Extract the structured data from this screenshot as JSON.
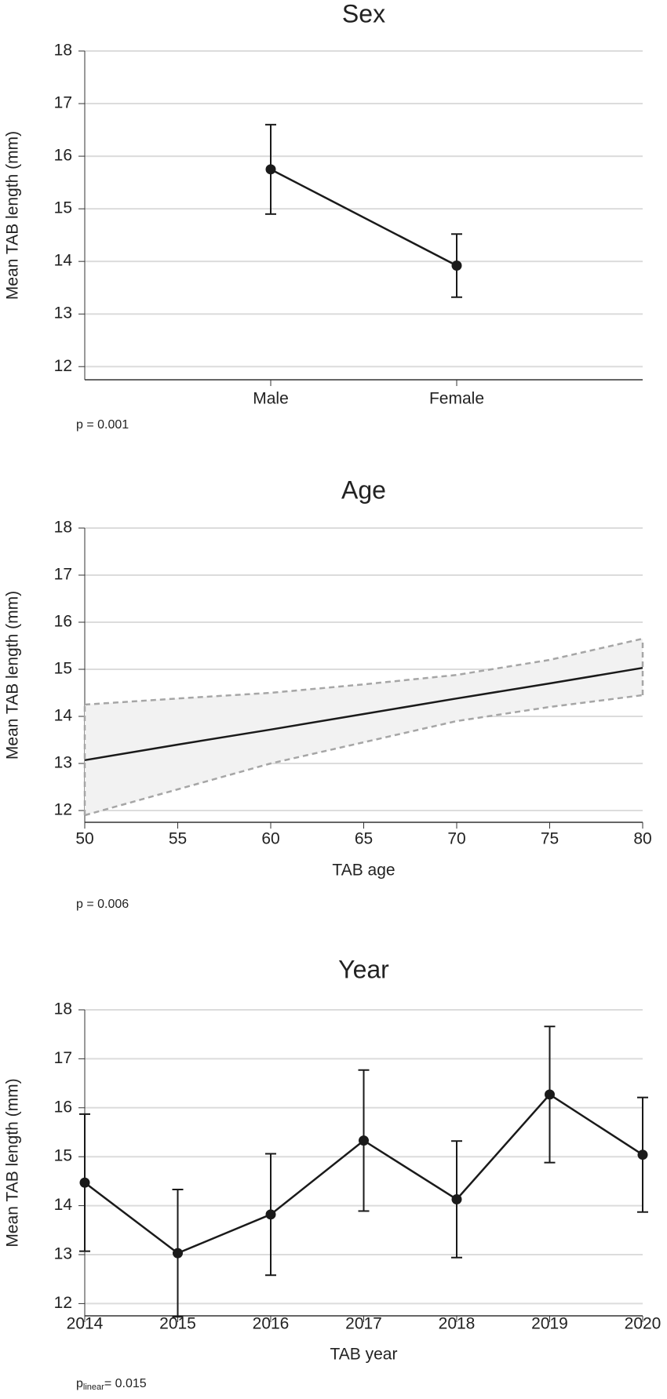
{
  "chart_data": [
    {
      "type": "line",
      "title": "Sex",
      "y_label": "Mean TAB length (mm)",
      "categories": [
        "Male",
        "Female"
      ],
      "values": [
        15.75,
        13.92
      ],
      "error": [
        0.85,
        0.6
      ],
      "ylim": [
        11.75,
        18
      ],
      "yticks": [
        12,
        13,
        14,
        15,
        16,
        17,
        18
      ],
      "grid": true,
      "color": "#1a1a1a",
      "note": "p = 0.001"
    },
    {
      "type": "line",
      "title": "Age",
      "y_label": "Mean TAB length (mm)",
      "x_label": "TAB age",
      "x": [
        50,
        55,
        60,
        65,
        70,
        75,
        80
      ],
      "values": [
        13.07,
        13.4,
        13.72,
        14.05,
        14.38,
        14.7,
        15.03
      ],
      "lower": [
        11.9,
        12.45,
        13.0,
        13.45,
        13.9,
        14.2,
        14.45
      ],
      "upper": [
        14.25,
        14.38,
        14.5,
        14.68,
        14.88,
        15.2,
        15.65
      ],
      "xlim": [
        50,
        80
      ],
      "xticks": [
        50,
        55,
        60,
        65,
        70,
        75,
        80
      ],
      "ylim": [
        11.75,
        18
      ],
      "yticks": [
        12,
        13,
        14,
        15,
        16,
        17,
        18
      ],
      "grid": true,
      "color": "#1a1a1a",
      "band_color": "#f2f2f2",
      "band_line_color": "#a6a6a6",
      "note": "p = 0.006"
    },
    {
      "type": "line",
      "title": "Year",
      "y_label": "Mean TAB length (mm)",
      "x_label": "TAB year",
      "x": [
        2014,
        2015,
        2016,
        2017,
        2018,
        2019,
        2020
      ],
      "values": [
        14.47,
        13.03,
        13.82,
        15.33,
        14.13,
        16.27,
        15.04
      ],
      "error": [
        1.4,
        1.3,
        1.24,
        1.44,
        1.19,
        1.39,
        1.17
      ],
      "xlim": [
        2014,
        2020
      ],
      "xticks": [
        2014,
        2015,
        2016,
        2017,
        2018,
        2019,
        2020
      ],
      "ylim": [
        11.75,
        18
      ],
      "yticks": [
        12,
        13,
        14,
        15,
        16,
        17,
        18
      ],
      "grid": true,
      "color": "#1a1a1a",
      "note_parts": [
        "p",
        "linear",
        "= 0.015"
      ]
    }
  ]
}
